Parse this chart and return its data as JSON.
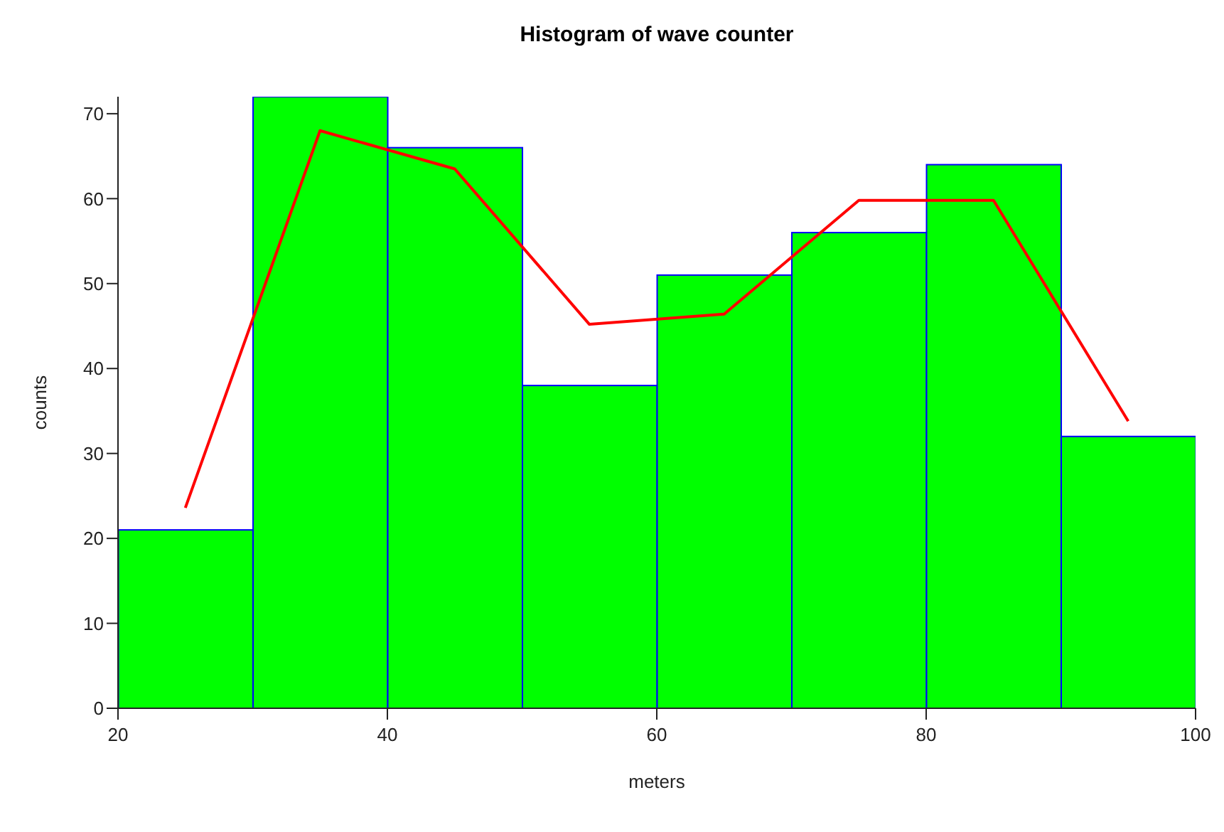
{
  "chart_data": {
    "type": "histogram",
    "title": "Histogram of wave counter",
    "xlabel": "meters",
    "ylabel": "counts",
    "bins": [
      20,
      30,
      40,
      50,
      60,
      70,
      80,
      90,
      100
    ],
    "values": [
      21,
      72,
      66,
      38,
      51,
      56,
      64,
      32
    ],
    "color": "#00ff00",
    "xlim": [
      20,
      100
    ],
    "xticks": [
      20,
      40,
      60,
      80,
      100
    ],
    "ylim": [
      0,
      72
    ],
    "yticks": [
      0,
      10,
      20,
      30,
      40,
      50,
      60,
      70
    ],
    "series": [
      {
        "type": "line",
        "x": [
          25,
          35,
          45,
          55,
          65,
          75,
          85,
          95
        ],
        "values": [
          23.6,
          68,
          63.5,
          45.2,
          46.4,
          59.8,
          59.8,
          33.8
        ],
        "color": "#ff0000"
      }
    ]
  }
}
